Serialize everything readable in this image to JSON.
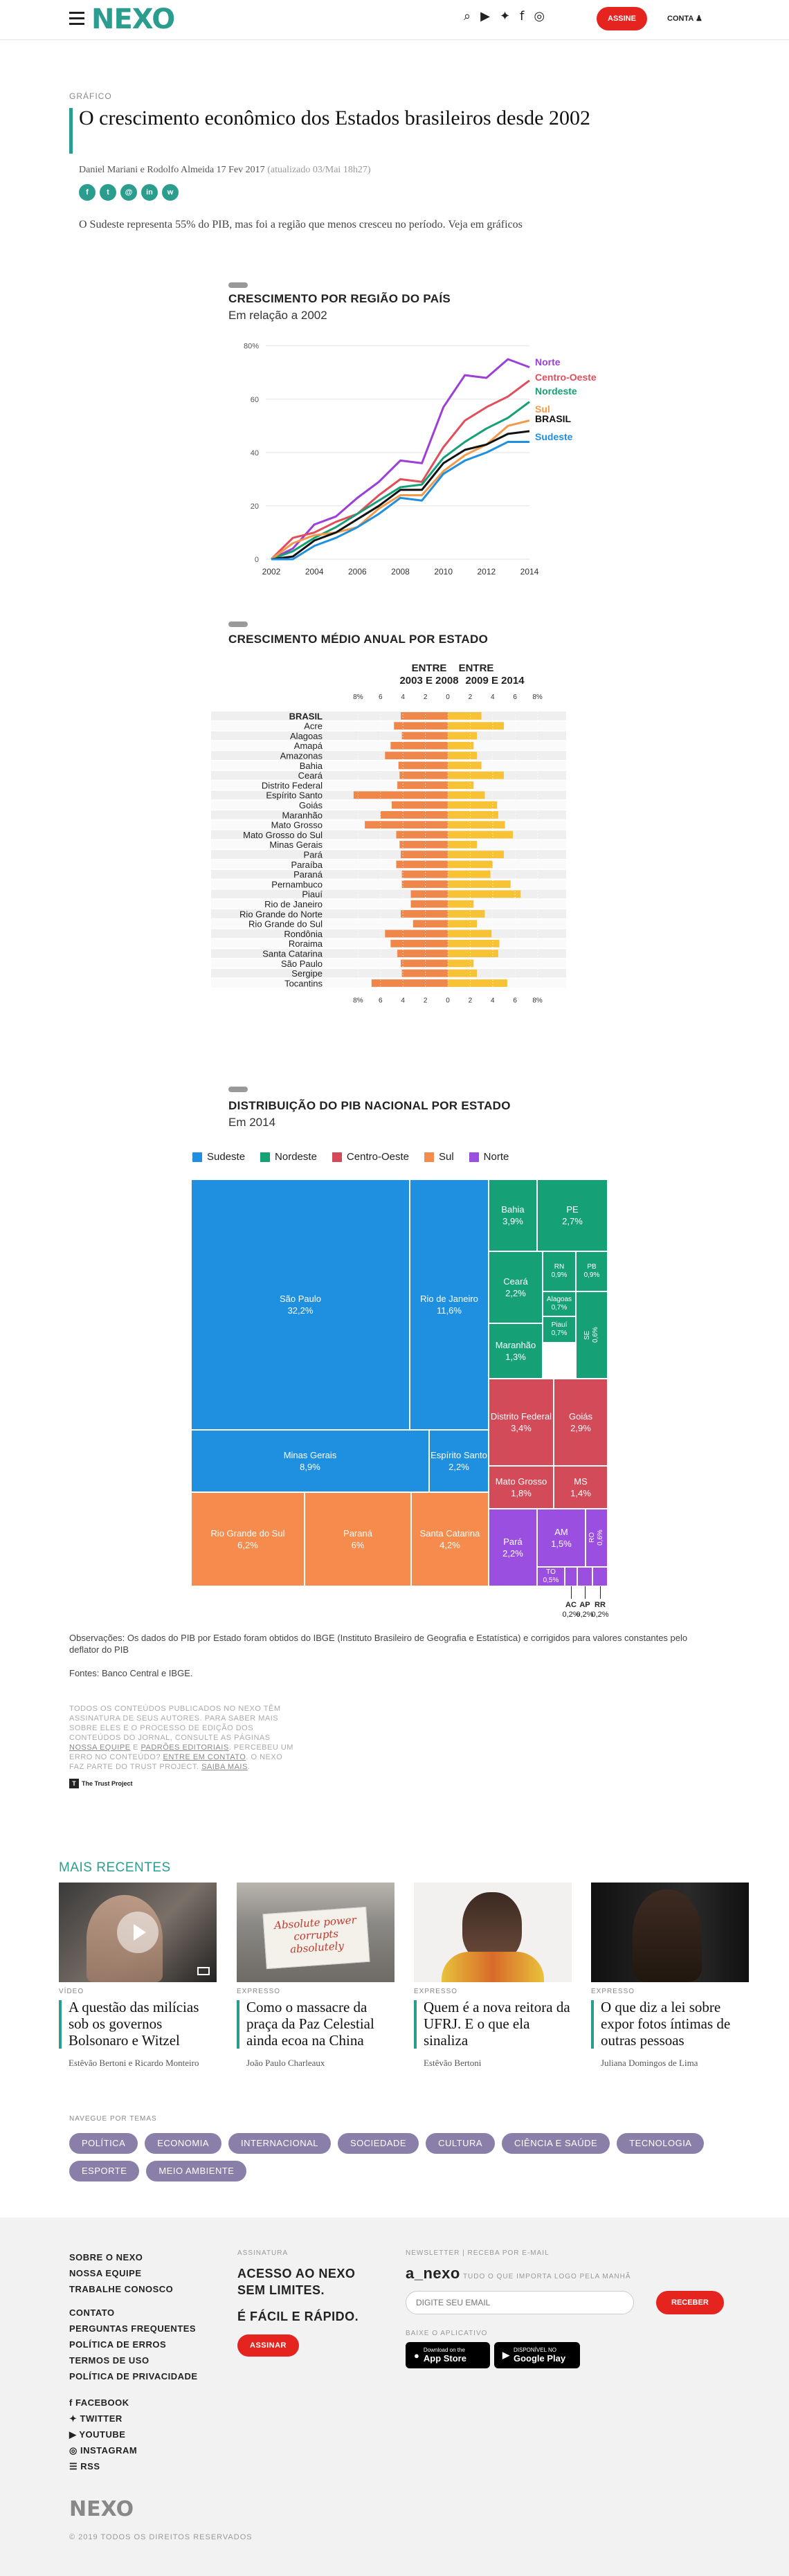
{
  "header": {
    "logo": "NEXO",
    "assine": "ASSINE",
    "conta": "CONTA"
  },
  "article": {
    "kicker": "GRÁFICO",
    "title": "O crescimento econômico dos Estados brasileiros desde 2002",
    "byline": "Daniel Mariani e Rodolfo Almeida 17 Fev 2017",
    "updated": "(atualizado 03/Mai 18h27)",
    "share": [
      "f",
      "t",
      "@",
      "in",
      "w"
    ],
    "lede": "O Sudeste representa 55% do PIB, mas foi a região que menos cresceu no período. Veja em gráficos"
  },
  "chart_data": [
    {
      "type": "line",
      "title": "CRESCIMENTO POR REGIÃO DO PAÍS",
      "subtitle": "Em relação a 2002",
      "x": [
        2002,
        2003,
        2004,
        2005,
        2006,
        2007,
        2008,
        2009,
        2010,
        2011,
        2012,
        2013,
        2014
      ],
      "xticks": [
        "2002",
        "2004",
        "2006",
        "2008",
        "2010",
        "2012",
        "2014"
      ],
      "yticks": [
        "0",
        "20",
        "40",
        "60",
        "80%"
      ],
      "ylim": [
        0,
        82
      ],
      "series": [
        {
          "name": "Norte",
          "color": "#9b3fd8",
          "values": [
            0,
            4,
            13,
            16,
            23,
            29,
            37,
            36,
            57,
            69,
            68,
            75,
            72
          ]
        },
        {
          "name": "Centro-Oeste",
          "color": "#e04e5a",
          "values": [
            0,
            8,
            10,
            14,
            17,
            24,
            30,
            29,
            42,
            52,
            57,
            61,
            67
          ]
        },
        {
          "name": "Nordeste",
          "color": "#15a076",
          "values": [
            0,
            3,
            8,
            12,
            17,
            22,
            27,
            28,
            38,
            44,
            49,
            53,
            59
          ]
        },
        {
          "name": "Sul",
          "color": "#f2994a",
          "values": [
            0,
            6,
            9,
            10,
            12,
            19,
            24,
            24,
            33,
            39,
            43,
            50,
            52
          ]
        },
        {
          "name": "BRASIL",
          "color": "#111111",
          "values": [
            0,
            1,
            7,
            10,
            15,
            20,
            26,
            26,
            36,
            41,
            43,
            47,
            48
          ]
        },
        {
          "name": "Sudeste",
          "color": "#1f8fe0",
          "values": [
            0,
            0,
            5,
            8,
            12,
            17,
            23,
            22,
            32,
            37,
            40,
            44,
            44
          ]
        }
      ]
    },
    {
      "type": "bar",
      "title": "CRESCIMENTO MÉDIO ANUAL POR ESTADO",
      "left_header": [
        "ENTRE",
        "2003 E 2008"
      ],
      "right_header": [
        "ENTRE",
        "2009 E 2014"
      ],
      "xticks": [
        "8%",
        "6",
        "4",
        "2",
        "0",
        "2",
        "4",
        "6",
        "8%"
      ],
      "categories": [
        "BRASIL",
        "Acre",
        "Alagoas",
        "Amapá",
        "Amazonas",
        "Bahia",
        "Ceará",
        "Distrito Federal",
        "Espírito Santo",
        "Goiás",
        "Maranhão",
        "Mato Grosso",
        "Mato Grosso do Sul",
        "Minas Gerais",
        "Pará",
        "Paraíba",
        "Paraná",
        "Pernambuco",
        "Piauí",
        "Rio de Janeiro",
        "Rio Grande do Norte",
        "Rio Grande do Sul",
        "Rondônia",
        "Roraima",
        "Santa Catarina",
        "São Paulo",
        "Sergipe",
        "Tocantins"
      ],
      "series": [
        {
          "name": "2003 e 2008",
          "color": "#f0874a",
          "values": [
            4.2,
            4.8,
            4.1,
            5.1,
            5.6,
            4.4,
            4.3,
            4.5,
            8.4,
            5.0,
            6.0,
            7.4,
            4.6,
            4.3,
            4.2,
            4.6,
            4.1,
            4.1,
            3.3,
            3.3,
            4.2,
            3.1,
            5.6,
            5.1,
            4.5,
            4.2,
            4.1,
            6.8
          ]
        },
        {
          "name": "2009 e 2014",
          "color": "#f7c334",
          "values": [
            3.0,
            5.0,
            2.6,
            2.3,
            2.6,
            3.0,
            5.0,
            2.3,
            3.3,
            4.4,
            4.5,
            5.1,
            5.8,
            2.6,
            5.0,
            4.0,
            3.8,
            5.6,
            6.5,
            2.3,
            3.3,
            2.6,
            3.9,
            4.6,
            4.5,
            2.3,
            2.6,
            5.3
          ]
        }
      ]
    },
    {
      "type": "heatmap",
      "title": "DISTRIBUIÇÃO DO PIB NACIONAL POR ESTADO",
      "subtitle": "Em 2014",
      "legend": [
        {
          "name": "Sudeste",
          "color": "#1f8fe0"
        },
        {
          "name": "Nordeste",
          "color": "#15a076"
        },
        {
          "name": "Centro-Oeste",
          "color": "#d34a58"
        },
        {
          "name": "Sul",
          "color": "#f58b4c"
        },
        {
          "name": "Norte",
          "color": "#9b4fe0"
        }
      ],
      "cells": [
        {
          "label": "São Paulo",
          "value": "32,2%",
          "region": "Sudeste"
        },
        {
          "label": "Rio de Janeiro",
          "value": "11,6%",
          "region": "Sudeste"
        },
        {
          "label": "Minas Gerais",
          "value": "8,9%",
          "region": "Sudeste"
        },
        {
          "label": "Espírito Santo",
          "value": "2,2%",
          "region": "Sudeste"
        },
        {
          "label": "Rio Grande do Sul",
          "value": "6,2%",
          "region": "Sul"
        },
        {
          "label": "Paraná",
          "value": "6%",
          "region": "Sul"
        },
        {
          "label": "Santa Catarina",
          "value": "4,2%",
          "region": "Sul"
        },
        {
          "label": "Bahia",
          "value": "3,9%",
          "region": "Nordeste"
        },
        {
          "label": "PE",
          "value": "2,7%",
          "region": "Nordeste"
        },
        {
          "label": "Ceará",
          "value": "2,2%",
          "region": "Nordeste"
        },
        {
          "label": "RN",
          "value": "0,9%",
          "region": "Nordeste"
        },
        {
          "label": "PB",
          "value": "0,9%",
          "region": "Nordeste"
        },
        {
          "label": "Alagoas",
          "value": "0,7%",
          "region": "Nordeste"
        },
        {
          "label": "Maranhão",
          "value": "1,3%",
          "region": "Nordeste"
        },
        {
          "label": "Piauí",
          "value": "0,7%",
          "region": "Nordeste"
        },
        {
          "label": "SE",
          "value": "0,6%",
          "region": "Nordeste"
        },
        {
          "label": "Distrito Federal",
          "value": "3,4%",
          "region": "Centro-Oeste"
        },
        {
          "label": "Goiás",
          "value": "2,9%",
          "region": "Centro-Oeste"
        },
        {
          "label": "Mato Grosso",
          "value": "1,8%",
          "region": "Centro-Oeste"
        },
        {
          "label": "MS",
          "value": "1,4%",
          "region": "Centro-Oeste"
        },
        {
          "label": "Pará",
          "value": "2,2%",
          "region": "Norte"
        },
        {
          "label": "AM",
          "value": "1,5%",
          "region": "Norte"
        },
        {
          "label": "RO",
          "value": "0,6%",
          "region": "Norte"
        },
        {
          "label": "TO",
          "value": "0,5%",
          "region": "Norte"
        },
        {
          "label": "AC",
          "value": "0,2%",
          "region": "Norte"
        },
        {
          "label": "AP",
          "value": "0,2%",
          "region": "Norte"
        },
        {
          "label": "RR",
          "value": "0,2%",
          "region": "Norte"
        }
      ]
    }
  ],
  "notes": {
    "obs": "Observações: Os dados do PIB por Estado foram obtidos do IBGE (Instituto Brasileiro de Geografia e Estatística) e corrigidos para valores constantes pelo deflator do PIB",
    "fontes": "Fontes: Banco Central e IBGE.",
    "trust_a": "TODOS OS CONTEÚDOS PUBLICADOS NO NEXO TÊM ASSINATURA DE SEUS AUTORES. PARA SABER MAIS SOBRE ELES E O PROCESSO DE EDIÇÃO DOS CONTEÚDOS DO JORNAL, CONSULTE AS PÁGINAS ",
    "trust_l1": "NOSSA EQUIPE",
    "trust_b": " E ",
    "trust_l2": "PADRÕES EDITORIAIS",
    "trust_c": ". PERCEBEU UM ERRO NO CONTEÚDO? ",
    "trust_l3": "ENTRE EM CONTATO",
    "trust_d": ". O NEXO FAZ PARTE DO TRUST PROJECT. ",
    "trust_l4": "SAIBA MAIS",
    "trust_e": ".",
    "trust_logo": "The Trust Project"
  },
  "recent": {
    "title": "MAIS RECENTES",
    "cards": [
      {
        "cat": "VÍDEO",
        "headline": "A questão das milícias sob os governos Bolsonaro e Witzel",
        "author": "Estêvão Bertoni e Ricardo Monteiro"
      },
      {
        "cat": "EXPRESSO",
        "headline": "Como o massacre da praça da Paz Celestial ainda ecoa na China",
        "author": "João Paulo Charleaux"
      },
      {
        "cat": "EXPRESSO",
        "headline": "Quem é a nova reitora da UFRJ. E o que ela sinaliza",
        "author": "Estêvão Bertoni"
      },
      {
        "cat": "EXPRESSO",
        "headline": "O que diz a lei sobre expor fotos íntimas de outras pessoas",
        "author": "Juliana Domingos de Lima"
      }
    ],
    "photo_text": [
      "Absolute power",
      "corrupts",
      "absolutely"
    ]
  },
  "tags": {
    "label": "NAVEGUE POR TEMAS",
    "items": [
      "POLÍTICA",
      "ECONOMIA",
      "INTERNACIONAL",
      "SOCIEDADE",
      "CULTURA",
      "CIÊNCIA E SAÚDE",
      "TECNOLOGIA",
      "ESPORTE",
      "MEIO AMBIENTE"
    ]
  },
  "footer": {
    "links1": [
      "SOBRE O NEXO",
      "NOSSA EQUIPE",
      "TRABALHE CONOSCO"
    ],
    "links2": [
      "CONTATO",
      "PERGUNTAS FREQUENTES",
      "POLÍTICA DE ERROS",
      "TERMOS DE USO",
      "POLÍTICA DE PRIVACIDADE"
    ],
    "social": [
      "FACEBOOK",
      "TWITTER",
      "YOUTUBE",
      "INSTAGRAM",
      "RSS"
    ],
    "assinatura_lbl": "ASSINATURA",
    "assinatura_1": "ACESSO AO NEXO SEM LIMITES.",
    "assinatura_2": "É FÁCIL E RÁPIDO.",
    "assinar": "ASSINAR",
    "news_lbl": "NEWSLETTER | RECEBA POR E-MAIL",
    "news_brand": "a_nexo",
    "news_desc": "TUDO O QUE IMPORTA LOGO PELA MANHÃ",
    "email_ph": "DIGITE SEU EMAIL",
    "receber": "RECEBER",
    "app_lbl": "BAIXE O APLICATIVO",
    "appstore_small": "Download on the",
    "appstore": "App Store",
    "play_small": "DISPONÍVEL NO",
    "play": "Google Play",
    "logo": "NEXO",
    "copy": "© 2019 TODOS OS DIREITOS RESERVADOS"
  }
}
